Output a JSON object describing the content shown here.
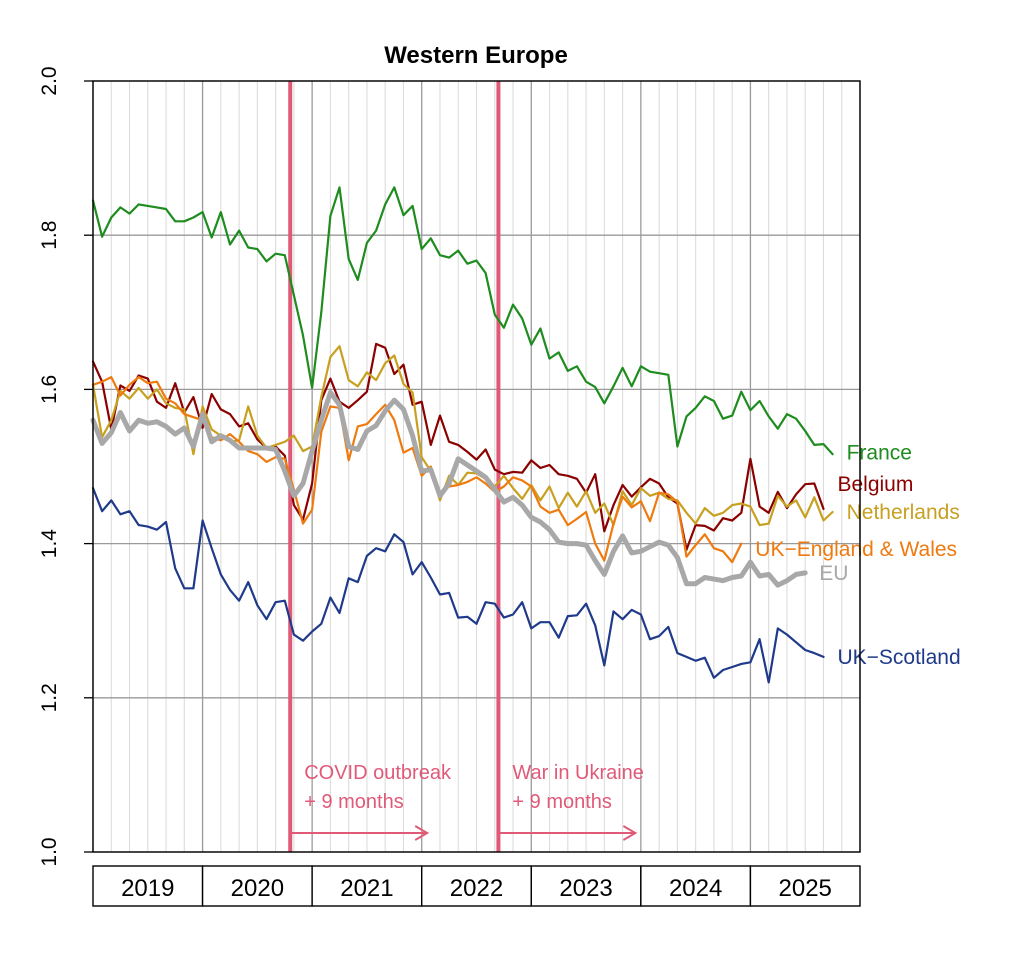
{
  "chart_data": {
    "type": "line",
    "title": "Western Europe",
    "xlabel": "",
    "ylabel": "",
    "ylim": [
      1.0,
      2.0
    ],
    "y_ticks": [
      "1.0",
      "1.2",
      "1.4",
      "1.6",
      "1.8",
      "2.0"
    ],
    "x_range": [
      2019.0,
      2026.0
    ],
    "grid": true,
    "years": [
      "2019",
      "2020",
      "2021",
      "2022",
      "2023",
      "2024",
      "2025"
    ],
    "events": [
      {
        "x": 2020.8,
        "line1": "COVID outbreak",
        "line2": "+ 9 months",
        "color": "#e05a78"
      },
      {
        "x": 2022.7,
        "line1": "War in Ukraine",
        "line2": "+ 9 months",
        "color": "#e05a78"
      }
    ],
    "series": [
      {
        "name": "France",
        "color": "#1e8c1e",
        "width": 2.2,
        "label_y": 1.518,
        "x0": 2019.0,
        "values": [
          1.845,
          1.798,
          1.823,
          1.836,
          1.828,
          1.84,
          1.838,
          1.836,
          1.834,
          1.818,
          1.818,
          1.823,
          1.83,
          1.797,
          1.83,
          1.788,
          1.806,
          1.784,
          1.782,
          1.766,
          1.776,
          1.774,
          1.722,
          1.67,
          1.602,
          1.7,
          1.825,
          1.862,
          1.769,
          1.742,
          1.79,
          1.806,
          1.84,
          1.862,
          1.826,
          1.838,
          1.782,
          1.796,
          1.774,
          1.771,
          1.78,
          1.763,
          1.767,
          1.751,
          1.697,
          1.68,
          1.71,
          1.692,
          1.658,
          1.679,
          1.64,
          1.648,
          1.624,
          1.63,
          1.61,
          1.603,
          1.582,
          1.604,
          1.628,
          1.604,
          1.63,
          1.623,
          1.621,
          1.619,
          1.526,
          1.565,
          1.576,
          1.591,
          1.585,
          1.562,
          1.566,
          1.597,
          1.573,
          1.585,
          1.565,
          1.549,
          1.568,
          1.562,
          1.546,
          1.528,
          1.529,
          1.516
        ]
      },
      {
        "name": "Belgium",
        "color": "#8b0000",
        "width": 2.2,
        "label_y": 1.477,
        "x0": 2019.0,
        "values": [
          1.636,
          1.61,
          1.548,
          1.605,
          1.598,
          1.618,
          1.614,
          1.584,
          1.576,
          1.608,
          1.57,
          1.59,
          1.55,
          1.594,
          1.574,
          1.568,
          1.552,
          1.556,
          1.535,
          1.524,
          1.526,
          1.514,
          1.45,
          1.431,
          1.478,
          1.586,
          1.614,
          1.584,
          1.576,
          1.586,
          1.597,
          1.659,
          1.654,
          1.62,
          1.632,
          1.58,
          1.584,
          1.528,
          1.566,
          1.532,
          1.528,
          1.519,
          1.509,
          1.522,
          1.496,
          1.49,
          1.493,
          1.492,
          1.508,
          1.498,
          1.502,
          1.49,
          1.488,
          1.484,
          1.466,
          1.49,
          1.416,
          1.45,
          1.476,
          1.461,
          1.473,
          1.484,
          1.478,
          1.46,
          1.452,
          1.392,
          1.424,
          1.423,
          1.417,
          1.433,
          1.43,
          1.44,
          1.51,
          1.448,
          1.44,
          1.467,
          1.446,
          1.464,
          1.477,
          1.478,
          1.445
        ]
      },
      {
        "name": "Netherlands",
        "color": "#c8a020",
        "width": 2.2,
        "label_y": 1.441,
        "x0": 2019.0,
        "values": [
          1.606,
          1.538,
          1.56,
          1.598,
          1.588,
          1.602,
          1.588,
          1.6,
          1.582,
          1.576,
          1.574,
          1.516,
          1.578,
          1.548,
          1.54,
          1.532,
          1.534,
          1.578,
          1.54,
          1.524,
          1.528,
          1.532,
          1.54,
          1.52,
          1.526,
          1.59,
          1.642,
          1.656,
          1.612,
          1.604,
          1.622,
          1.612,
          1.634,
          1.644,
          1.607,
          1.596,
          1.512,
          1.494,
          1.456,
          1.488,
          1.476,
          1.492,
          1.491,
          1.484,
          1.474,
          1.488,
          1.472,
          1.458,
          1.476,
          1.456,
          1.474,
          1.446,
          1.466,
          1.448,
          1.468,
          1.44,
          1.452,
          1.424,
          1.468,
          1.45,
          1.472,
          1.462,
          1.466,
          1.458,
          1.456,
          1.44,
          1.426,
          1.446,
          1.436,
          1.44,
          1.45,
          1.452,
          1.448,
          1.424,
          1.426,
          1.462,
          1.448,
          1.456,
          1.434,
          1.46,
          1.43,
          1.441
        ]
      },
      {
        "name": "UK−England & Wales",
        "color": "#ee7a10",
        "width": 2.2,
        "label_y": 1.393,
        "x0": 2019.0,
        "values": [
          1.606,
          1.61,
          1.616,
          1.592,
          1.606,
          1.616,
          1.608,
          1.61,
          1.588,
          1.582,
          1.568,
          1.564,
          1.56,
          1.538,
          1.534,
          1.542,
          1.532,
          1.52,
          1.516,
          1.506,
          1.512,
          1.51,
          1.47,
          1.426,
          1.444,
          1.545,
          1.578,
          1.576,
          1.508,
          1.552,
          1.555,
          1.568,
          1.58,
          1.56,
          1.518,
          1.524,
          1.488,
          1.5,
          1.466,
          1.474,
          1.476,
          1.48,
          1.486,
          1.478,
          1.467,
          1.474,
          1.486,
          1.482,
          1.474,
          1.448,
          1.44,
          1.444,
          1.424,
          1.432,
          1.441,
          1.4,
          1.378,
          1.426,
          1.461,
          1.447,
          1.455,
          1.429,
          1.466,
          1.464,
          1.454,
          1.383,
          1.398,
          1.412,
          1.394,
          1.39,
          1.376,
          1.4
        ]
      },
      {
        "name": "EU",
        "color": "#a8a8a8",
        "width": 5,
        "label_y": 1.362,
        "x0": 2019.0,
        "values": [
          1.56,
          1.53,
          1.544,
          1.57,
          1.546,
          1.56,
          1.556,
          1.558,
          1.552,
          1.542,
          1.55,
          1.526,
          1.568,
          1.532,
          1.54,
          1.534,
          1.524,
          1.524,
          1.524,
          1.524,
          1.522,
          1.494,
          1.462,
          1.478,
          1.52,
          1.56,
          1.596,
          1.58,
          1.526,
          1.522,
          1.546,
          1.553,
          1.572,
          1.586,
          1.574,
          1.54,
          1.494,
          1.496,
          1.462,
          1.478,
          1.51,
          1.502,
          1.494,
          1.486,
          1.47,
          1.454,
          1.46,
          1.45,
          1.434,
          1.428,
          1.418,
          1.402,
          1.4,
          1.4,
          1.398,
          1.378,
          1.36,
          1.39,
          1.41,
          1.388,
          1.39,
          1.396,
          1.402,
          1.398,
          1.382,
          1.348,
          1.348,
          1.356,
          1.354,
          1.352,
          1.356,
          1.358,
          1.376,
          1.358,
          1.36,
          1.346,
          1.352,
          1.36,
          1.362
        ]
      },
      {
        "name": "UK−Scotland",
        "color": "#1f3a8a",
        "width": 2.2,
        "label_y": 1.253,
        "x0": 2019.0,
        "values": [
          1.472,
          1.442,
          1.456,
          1.438,
          1.442,
          1.424,
          1.422,
          1.418,
          1.428,
          1.368,
          1.342,
          1.342,
          1.43,
          1.394,
          1.36,
          1.34,
          1.326,
          1.35,
          1.32,
          1.302,
          1.324,
          1.326,
          1.282,
          1.274,
          1.286,
          1.296,
          1.33,
          1.31,
          1.355,
          1.35,
          1.384,
          1.394,
          1.39,
          1.412,
          1.402,
          1.36,
          1.376,
          1.356,
          1.334,
          1.336,
          1.304,
          1.305,
          1.296,
          1.324,
          1.322,
          1.304,
          1.308,
          1.324,
          1.29,
          1.298,
          1.298,
          1.278,
          1.306,
          1.307,
          1.322,
          1.294,
          1.242,
          1.312,
          1.302,
          1.314,
          1.308,
          1.276,
          1.28,
          1.292,
          1.258,
          1.253,
          1.248,
          1.252,
          1.226,
          1.236,
          1.24,
          1.244,
          1.246,
          1.276,
          1.22,
          1.29,
          1.282,
          1.272,
          1.262,
          1.258,
          1.253
        ]
      }
    ]
  }
}
